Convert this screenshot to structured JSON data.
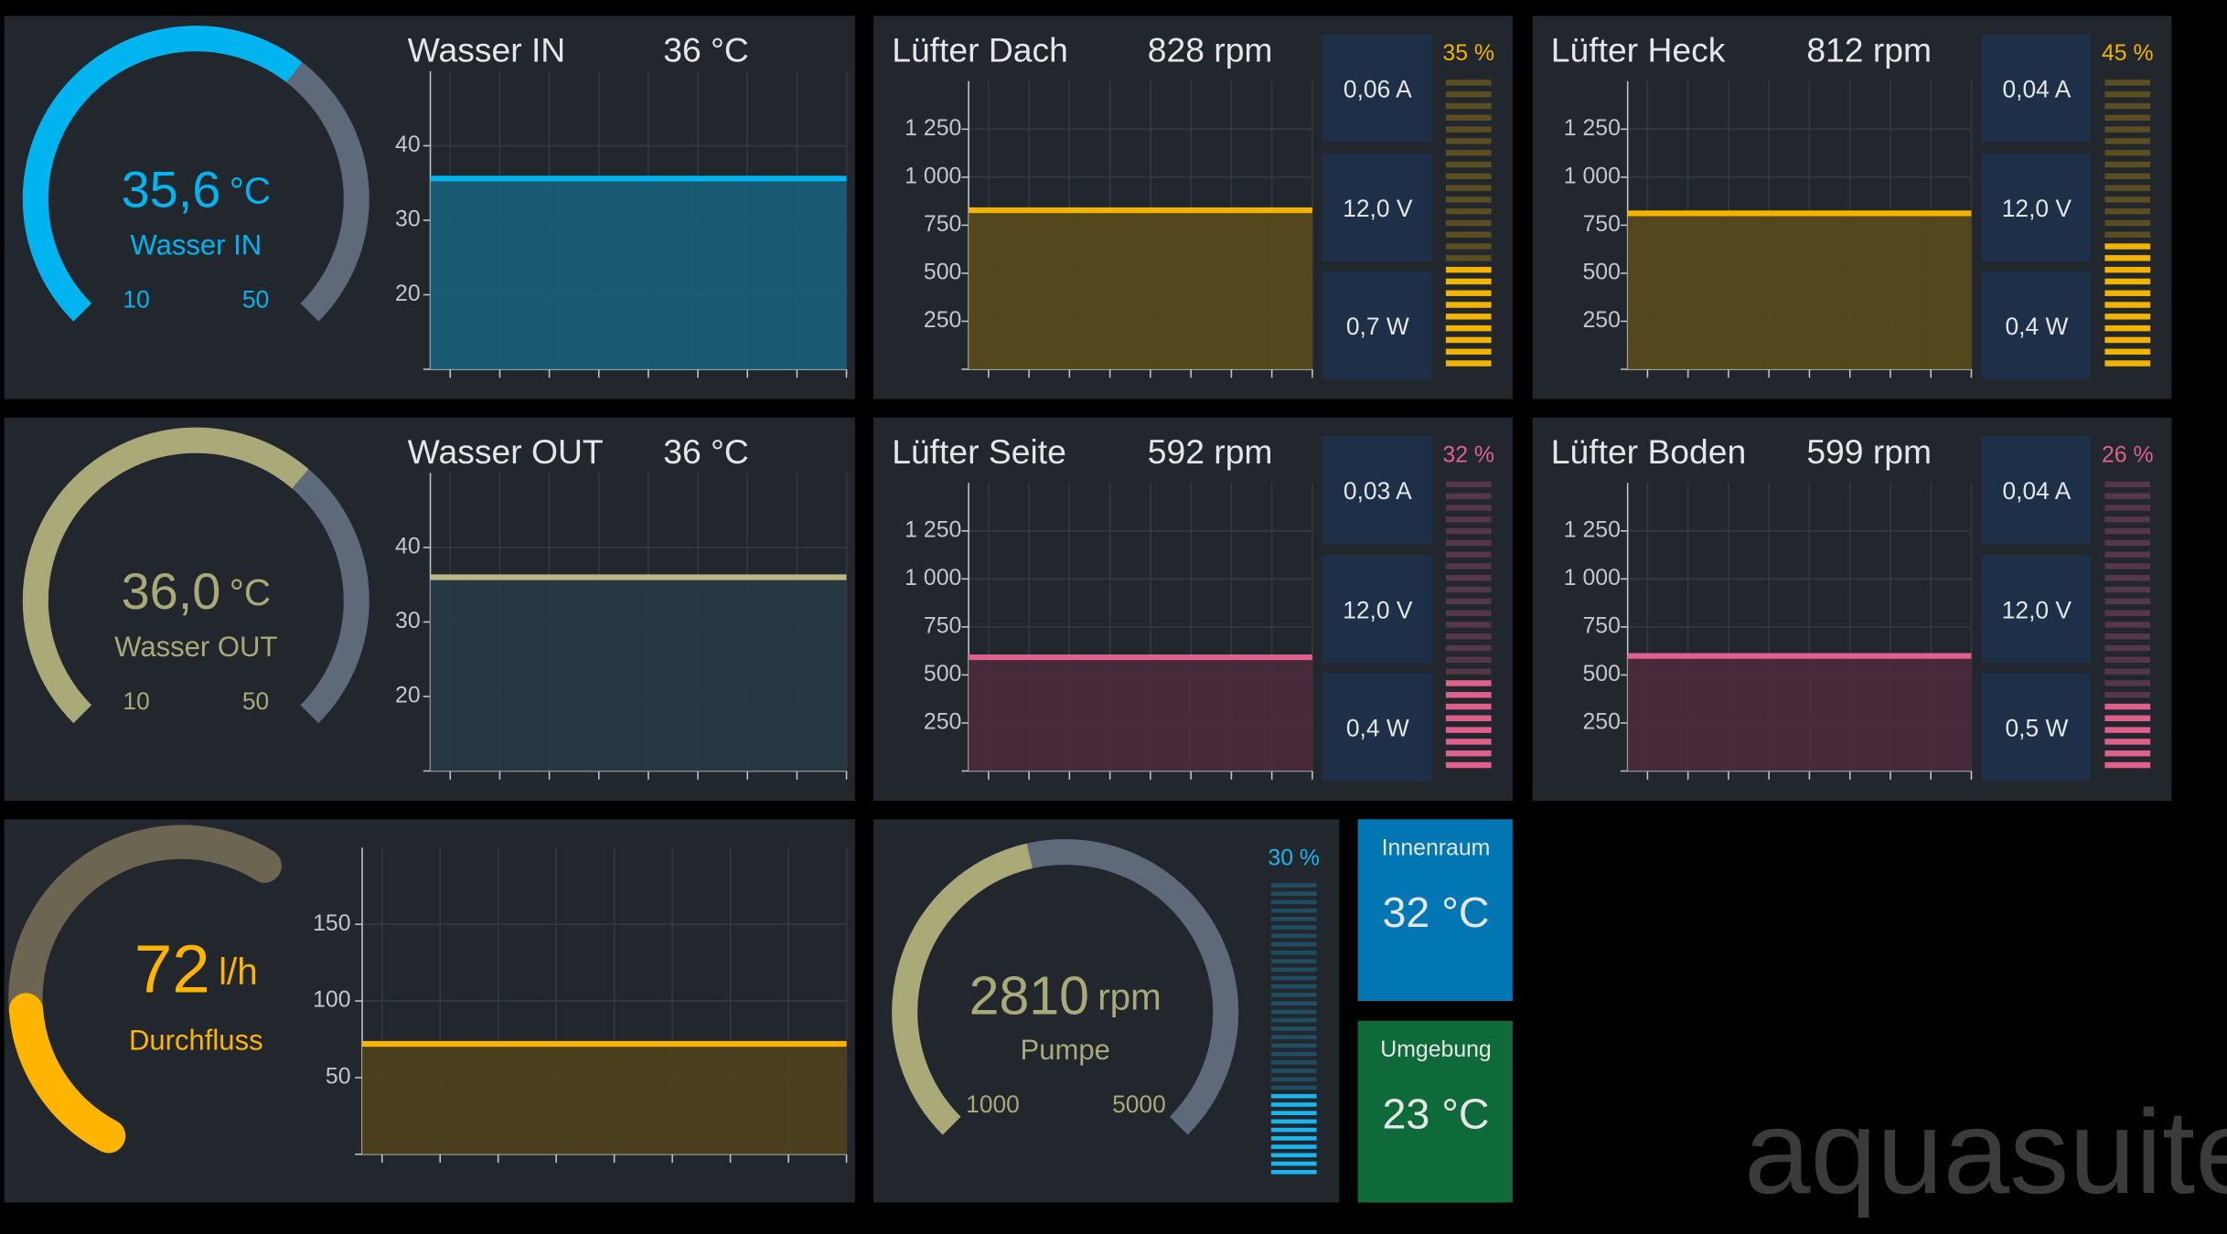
{
  "temperatures": [
    {
      "gauge": {
        "value": 35.6,
        "value_label": "35,6",
        "unit": "°C",
        "name": "Wasser IN",
        "range": [
          10,
          50
        ],
        "color": "#00b4f0"
      },
      "chart": {
        "type": "line",
        "title": "Wasser IN",
        "reading": "36 °C",
        "ylim": [
          10,
          50
        ],
        "yticks": [
          20,
          30,
          40
        ],
        "values": [
          35.6,
          35.6,
          35.6,
          35.6,
          35.6
        ],
        "color": "#00b4f0",
        "area_color": "#18607a"
      }
    },
    {
      "gauge": {
        "value": 36.0,
        "value_label": "36,0",
        "unit": "°C",
        "name": "Wasser OUT",
        "range": [
          10,
          50
        ],
        "color": "#aaa978"
      },
      "chart": {
        "type": "line",
        "title": "Wasser OUT",
        "reading": "36 °C",
        "ylim": [
          10,
          50
        ],
        "yticks": [
          20,
          30,
          40
        ],
        "values": [
          36.0,
          36.0,
          36.0,
          36.0,
          36.0
        ],
        "color": "#b9b884",
        "area_color": "#263a42"
      }
    }
  ],
  "fans": [
    {
      "title": "Lüfter Dach",
      "reading": "828 rpm",
      "current": "0,06 A",
      "voltage": "12,0 V",
      "power": "0,7 W",
      "percent": 35,
      "percent_label": "35 %",
      "color": "#f2b400",
      "chart": {
        "type": "line",
        "ylim": [
          0,
          1500
        ],
        "yticks": [
          250,
          500,
          750,
          {
            "value": 1000,
            "label": "1 000"
          },
          {
            "value": 1250,
            "label": "1 250"
          }
        ],
        "values": [
          828,
          828,
          828,
          828,
          828
        ],
        "area_color": "#5a4a1c"
      }
    },
    {
      "title": "Lüfter Heck",
      "reading": "812 rpm",
      "current": "0,04 A",
      "voltage": "12,0 V",
      "power": "0,4 W",
      "percent": 45,
      "percent_label": "45 %",
      "color": "#f2b400",
      "chart": {
        "type": "line",
        "ylim": [
          0,
          1500
        ],
        "yticks": [
          250,
          500,
          750,
          {
            "value": 1000,
            "label": "1 000"
          },
          {
            "value": 1250,
            "label": "1 250"
          }
        ],
        "values": [
          812,
          812,
          812,
          812,
          812
        ],
        "area_color": "#5a4a1c"
      }
    },
    {
      "title": "Lüfter Seite",
      "reading": "592 rpm",
      "current": "0,03 A",
      "voltage": "12,0 V",
      "power": "0,4 W",
      "percent": 32,
      "percent_label": "32 %",
      "color": "#e0608c",
      "chart": {
        "type": "line",
        "ylim": [
          0,
          1500
        ],
        "yticks": [
          250,
          500,
          750,
          {
            "value": 1000,
            "label": "1 000"
          },
          {
            "value": 1250,
            "label": "1 250"
          }
        ],
        "values": [
          592,
          592,
          592,
          592,
          592
        ],
        "area_color": "#4a2b3c"
      }
    },
    {
      "title": "Lüfter Boden",
      "reading": "599 rpm",
      "current": "0,04 A",
      "voltage": "12,0 V",
      "power": "0,5 W",
      "percent": 26,
      "percent_label": "26 %",
      "color": "#e0608c",
      "chart": {
        "type": "line",
        "ylim": [
          0,
          1500
        ],
        "yticks": [
          250,
          500,
          750,
          {
            "value": 1000,
            "label": "1 000"
          },
          {
            "value": 1250,
            "label": "1 250"
          }
        ],
        "values": [
          599,
          599,
          599,
          599,
          599
        ],
        "area_color": "#4a2b3c"
      }
    }
  ],
  "flow": {
    "gauge": {
      "value": 72,
      "unit": "l/h",
      "name": "Durchfluss",
      "range": [
        0,
        230
      ],
      "color": "#ffb400"
    },
    "chart": {
      "type": "line",
      "ylim": [
        0,
        200
      ],
      "yticks": [
        50,
        100,
        150
      ],
      "values": [
        72,
        72,
        72,
        72,
        72
      ],
      "color": "#ffb400",
      "area_color": "#4f421c"
    }
  },
  "pump": {
    "gauge": {
      "value": 2810,
      "unit": "rpm",
      "name": "Pumpe",
      "range": [
        1000,
        5000
      ],
      "color": "#aaa978"
    },
    "percent": 30,
    "percent_label": "30 %",
    "color": "#1ab4ee"
  },
  "tiles": [
    {
      "name": "Innenraum",
      "reading": "32 °C",
      "color": "#0077b2"
    },
    {
      "name": "Umgebung",
      "reading": "23 °C",
      "color": "#0f6a3a"
    }
  ],
  "logo": "aquasuite"
}
